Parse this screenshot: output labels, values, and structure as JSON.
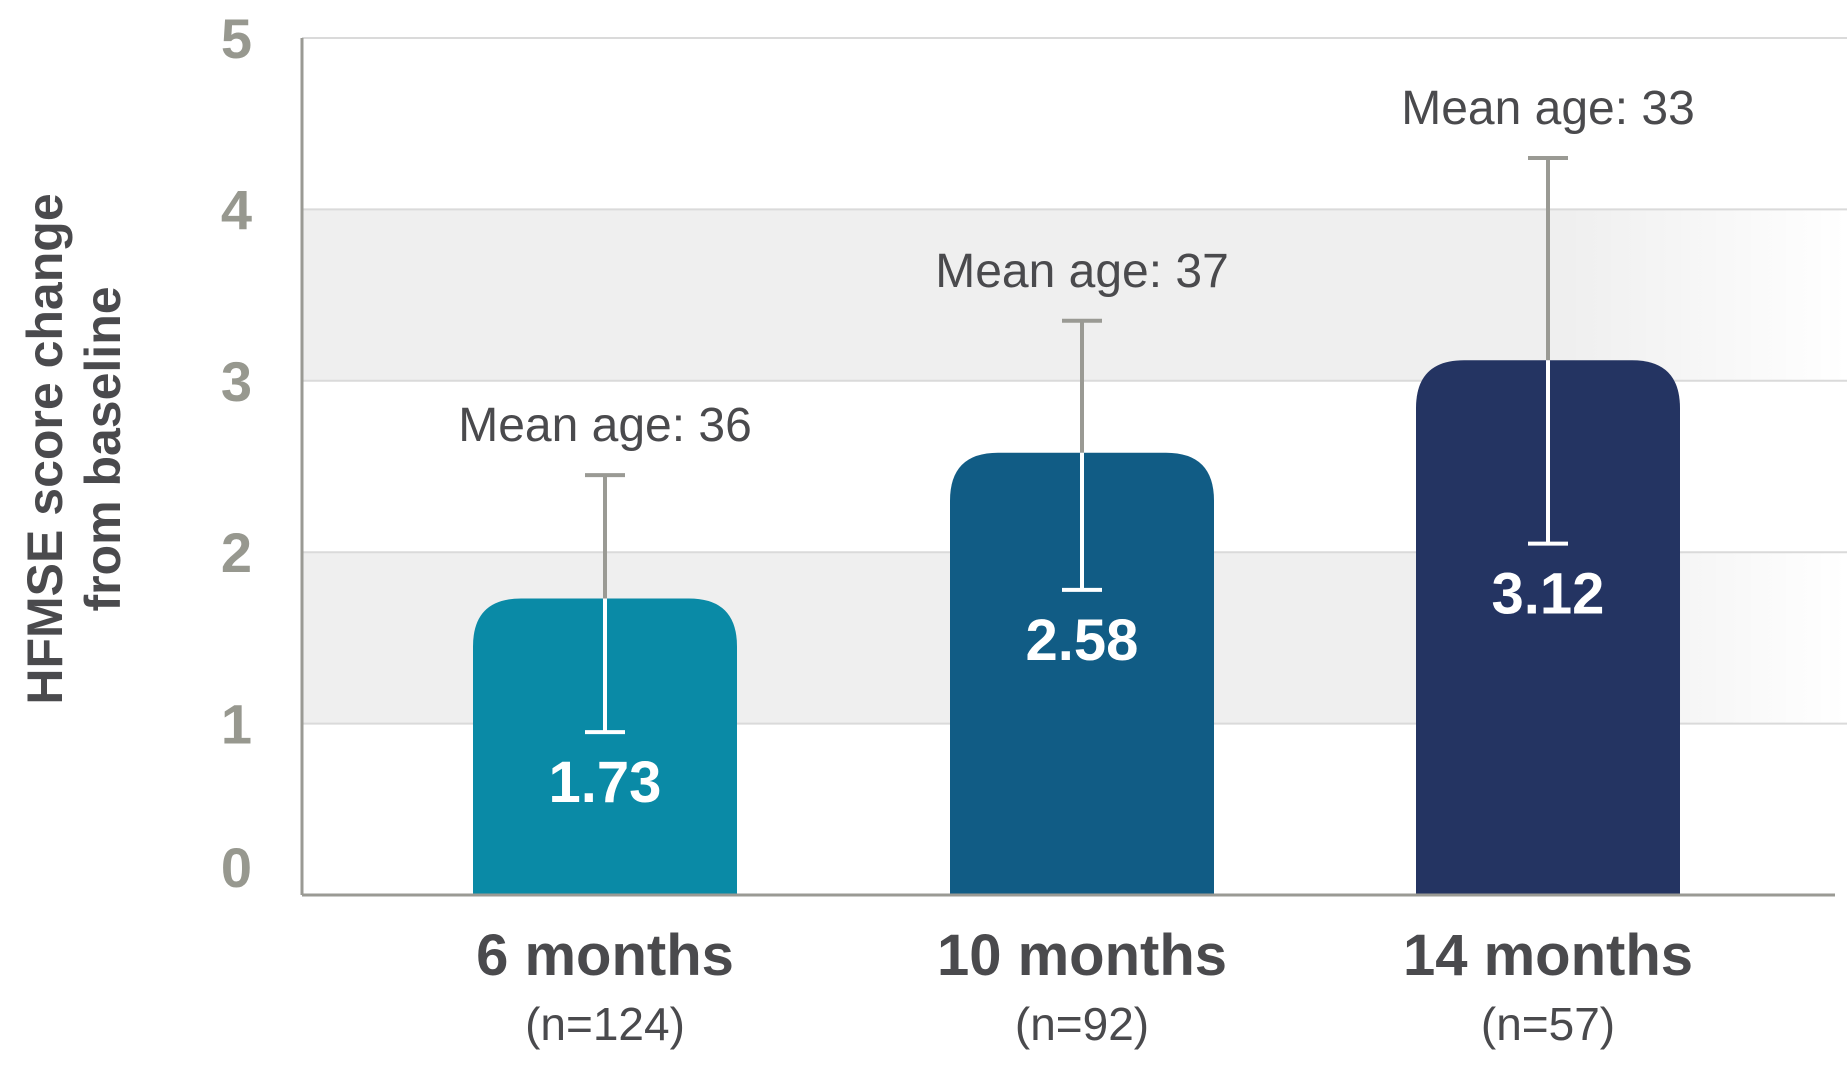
{
  "chart_data": {
    "type": "bar",
    "categories": [
      "6 months",
      "10 months",
      "14 months"
    ],
    "category_sublabels": [
      "(n=124)",
      "(n=92)",
      "(n=57)"
    ],
    "values": [
      1.73,
      2.58,
      3.12
    ],
    "value_labels": [
      "1.73",
      "2.58",
      "3.12"
    ],
    "error_upper": [
      2.45,
      3.35,
      4.3
    ],
    "error_lower": [
      0.95,
      1.78,
      2.05
    ],
    "annotations": [
      "Mean age: 36",
      "Mean age: 37",
      "Mean age: 33"
    ],
    "bar_colors": [
      "#0a8aa6",
      "#115c85",
      "#243462"
    ],
    "ylabel_lines": [
      "HFMSE score change",
      "from baseline"
    ],
    "ylim": [
      0,
      5
    ],
    "yticks": [
      "0",
      "1",
      "2",
      "3",
      "4",
      "5"
    ],
    "grid": true,
    "band_color": "#efefef",
    "axis_color": "#9a9a94",
    "errorbar_color": "#9a9a94"
  }
}
